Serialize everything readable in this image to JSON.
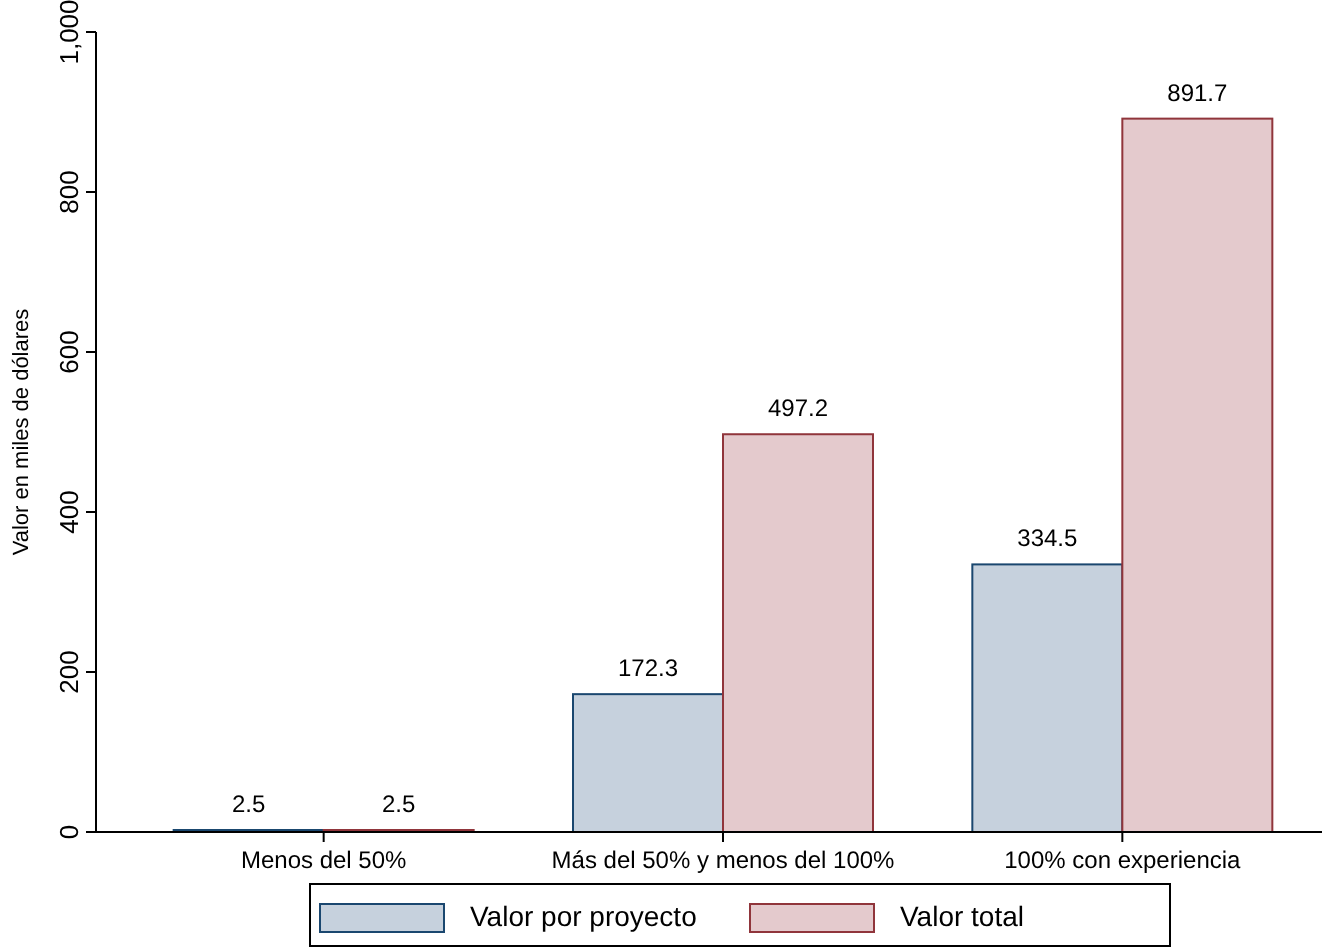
{
  "chart_data": {
    "type": "bar",
    "ylabel": "Valor en miles de dólares",
    "categories": [
      "Menos del 50%",
      "Más del 50% y menos del 100%",
      "100% con experiencia"
    ],
    "series": [
      {
        "name": "Valor por proyecto",
        "color": "#c6d1dd",
        "values": [
          2.5,
          172.3,
          334.5
        ]
      },
      {
        "name": "Valor total",
        "color": "#e4cacd",
        "values": [
          2.5,
          497.2,
          891.7
        ]
      }
    ],
    "ylim": [
      0,
      1000
    ],
    "yticks": [
      0,
      200,
      400,
      600,
      800,
      {
        "value": 1000,
        "label": "1,000"
      }
    ],
    "data_labels": true,
    "legend": "bottom",
    "grid": false
  }
}
